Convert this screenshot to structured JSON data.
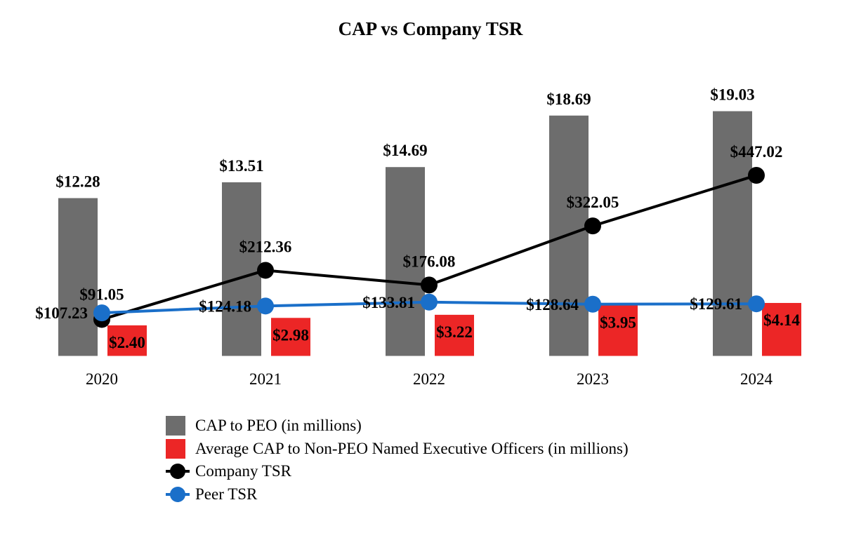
{
  "chart_data": {
    "type": "bar",
    "title": "CAP vs Company TSR",
    "categories": [
      "2020",
      "2021",
      "2022",
      "2023",
      "2024"
    ],
    "series": [
      {
        "name": "CAP to PEO (in millions)",
        "kind": "bar",
        "axis": "left",
        "values": [
          12.28,
          13.51,
          14.69,
          18.69,
          19.03
        ],
        "labels": [
          "$12.28",
          "$13.51",
          "$14.69",
          "$18.69",
          "$19.03"
        ],
        "color": "#6d6d6d"
      },
      {
        "name": "Average CAP to Non-PEO Named Executive Officers (in millions)",
        "kind": "bar",
        "axis": "left",
        "values": [
          2.4,
          2.98,
          3.22,
          3.95,
          4.14
        ],
        "labels": [
          "$2.40",
          "$2.98",
          "$3.22",
          "$3.95",
          "$4.14"
        ],
        "color": "#ec2626"
      },
      {
        "name": "Company TSR",
        "kind": "line",
        "axis": "right",
        "values": [
          91.05,
          212.36,
          176.08,
          322.05,
          447.02
        ],
        "labels": [
          "$91.05",
          "$212.36",
          "$176.08",
          "$322.05",
          "$447.02"
        ],
        "color": "#000000"
      },
      {
        "name": "Peer TSR",
        "kind": "line",
        "axis": "right",
        "values": [
          107.23,
          124.18,
          133.81,
          128.64,
          129.61
        ],
        "labels": [
          "$107.23",
          "$124.18",
          "$133.81",
          "$128.64",
          "$129.61"
        ],
        "color": "#1a6fc9"
      }
    ],
    "ylim_left": [
      0,
      22
    ],
    "ylim_right": [
      0,
      700
    ],
    "grid": false,
    "legend_position": "bottom"
  }
}
